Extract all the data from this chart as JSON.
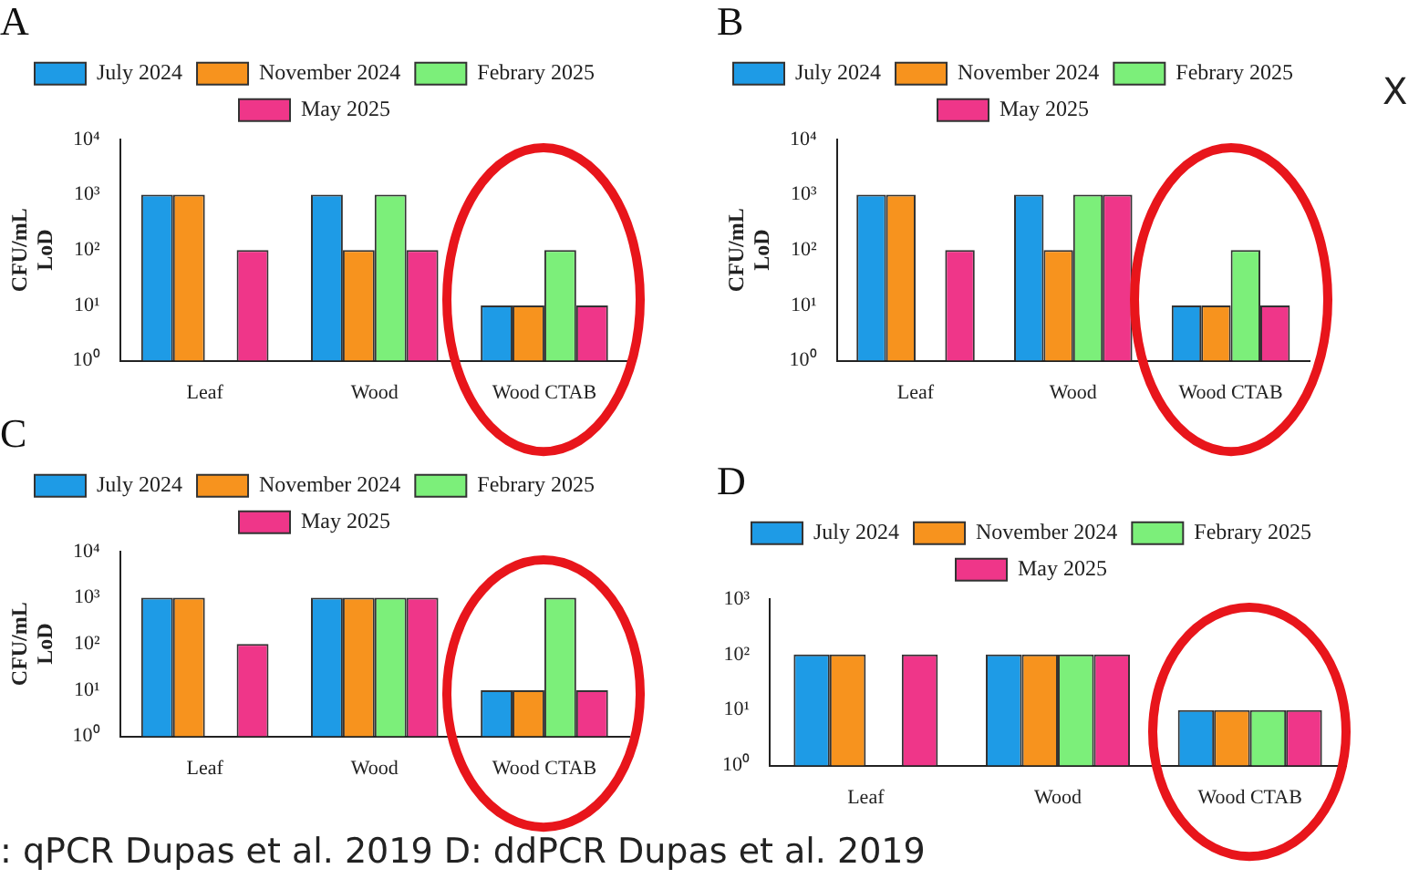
{
  "chart_data": [
    {
      "type": "bar",
      "title": "A",
      "ylabel": "CFU/mL\nLoD",
      "categories": [
        "Leaf",
        "Wood",
        "Wood CTAB"
      ],
      "log": "y",
      "ylim": [
        1,
        10000
      ],
      "yticks": [
        {
          "value": 1,
          "label": "10⁰"
        },
        {
          "value": 10,
          "label": "10¹"
        },
        {
          "value": 100,
          "label": "10²"
        },
        {
          "value": 1000,
          "label": "10³"
        },
        {
          "value": 10000,
          "label": "10⁴"
        }
      ],
      "grid": false,
      "legend": "top",
      "series": [
        {
          "name": "July 2024",
          "color": "#1e9be6",
          "values": [
            1000,
            1000,
            10
          ]
        },
        {
          "name": "November 2024",
          "color": "#f7931e",
          "values": [
            1000,
            100,
            10
          ]
        },
        {
          "name": "Febrary 2025",
          "color": "#7cef7a",
          "values": [
            null,
            1000,
            100
          ]
        },
        {
          "name": "May 2025",
          "color": "#ef3689",
          "values": [
            100,
            100,
            10
          ]
        }
      ]
    },
    {
      "type": "bar",
      "title": "B",
      "ylabel": "CFU/mL\nLoD",
      "categories": [
        "Leaf",
        "Wood",
        "Wood CTAB"
      ],
      "log": "y",
      "ylim": [
        1,
        10000
      ],
      "yticks": [
        {
          "value": 1,
          "label": "10⁰"
        },
        {
          "value": 10,
          "label": "10¹"
        },
        {
          "value": 100,
          "label": "10²"
        },
        {
          "value": 1000,
          "label": "10³"
        },
        {
          "value": 10000,
          "label": "10⁴"
        }
      ],
      "grid": false,
      "legend": "top",
      "annotations": [
        "X"
      ],
      "series": [
        {
          "name": "July 2024",
          "color": "#1e9be6",
          "values": [
            1000,
            1000,
            10
          ]
        },
        {
          "name": "November 2024",
          "color": "#f7931e",
          "values": [
            1000,
            100,
            10
          ]
        },
        {
          "name": "Febrary 2025",
          "color": "#7cef7a",
          "values": [
            null,
            1000,
            100
          ]
        },
        {
          "name": "May 2025",
          "color": "#ef3689",
          "values": [
            100,
            1000,
            10
          ]
        }
      ]
    },
    {
      "type": "bar",
      "title": "C",
      "ylabel": "CFU/mL\nLoD",
      "categories": [
        "Leaf",
        "Wood",
        "Wood CTAB"
      ],
      "log": "y",
      "ylim": [
        1,
        10000
      ],
      "yticks": [
        {
          "value": 1,
          "label": "10⁰"
        },
        {
          "value": 10,
          "label": "10¹"
        },
        {
          "value": 100,
          "label": "10²"
        },
        {
          "value": 1000,
          "label": "10³"
        },
        {
          "value": 10000,
          "label": "10⁴"
        }
      ],
      "grid": false,
      "legend": "top",
      "series": [
        {
          "name": "July 2024",
          "color": "#1e9be6",
          "values": [
            1000,
            1000,
            10
          ]
        },
        {
          "name": "November 2024",
          "color": "#f7931e",
          "values": [
            1000,
            1000,
            10
          ]
        },
        {
          "name": "Febrary 2025",
          "color": "#7cef7a",
          "values": [
            null,
            1000,
            1000
          ]
        },
        {
          "name": "May 2025",
          "color": "#ef3689",
          "values": [
            100,
            1000,
            10
          ]
        }
      ]
    },
    {
      "type": "bar",
      "title": "D",
      "categories": [
        "Leaf",
        "Wood",
        "Wood CTAB"
      ],
      "log": "y",
      "ylim": [
        1,
        1000
      ],
      "yticks": [
        {
          "value": 1,
          "label": "10⁰"
        },
        {
          "value": 10,
          "label": "10¹"
        },
        {
          "value": 100,
          "label": "10²"
        },
        {
          "value": 1000,
          "label": "10³"
        }
      ],
      "grid": false,
      "legend": "top",
      "annotations": [
        ": qPCR Dupas et al. 2019 D: ddPCR Dupas et al. 2019"
      ],
      "series": [
        {
          "name": "July 2024",
          "color": "#1e9be6",
          "values": [
            100,
            100,
            10
          ]
        },
        {
          "name": "November 2024",
          "color": "#f7931e",
          "values": [
            100,
            100,
            10
          ]
        },
        {
          "name": "Febrary 2025",
          "color": "#7cef7a",
          "values": [
            null,
            100,
            10
          ]
        },
        {
          "name": "May 2025",
          "color": "#ef3689",
          "values": [
            100,
            100,
            10
          ]
        }
      ]
    }
  ]
}
